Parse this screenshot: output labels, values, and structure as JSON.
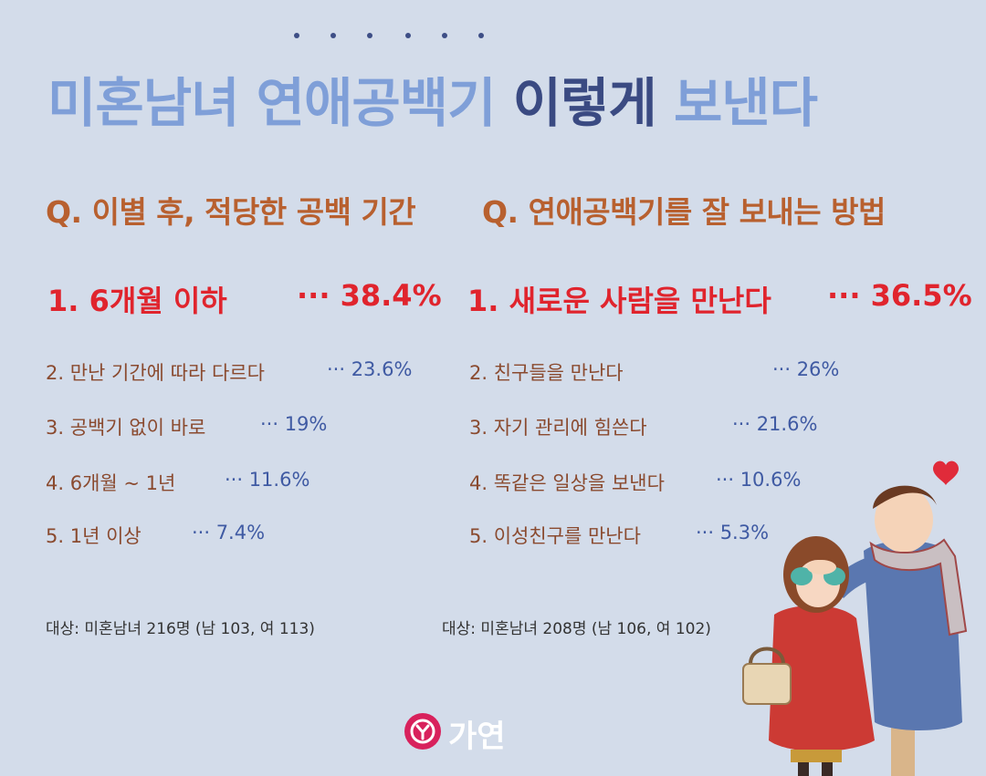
{
  "title": {
    "part1": "미혼남녀 연애공백기",
    "part2": "이렇게",
    "part3": "보낸다"
  },
  "left": {
    "question": "Q. 이별 후, 적당한 공백 기간",
    "top_label": "1. 6개월 이하",
    "top_pct": "··· 38.4%",
    "items": [
      {
        "label": "2. 만난 기간에 따라 다르다",
        "pct": "··· 23.6%"
      },
      {
        "label": "3. 공백기 없이 바로",
        "pct": "··· 19%"
      },
      {
        "label": "4. 6개월 ~ 1년",
        "pct": "··· 11.6%"
      },
      {
        "label": "5. 1년 이상",
        "pct": "··· 7.4%"
      }
    ],
    "note": "대상: 미혼남녀 216명 (남 103, 여 113)"
  },
  "right": {
    "question": "Q. 연애공백기를 잘 보내는 방법",
    "top_label": "1. 새로운 사람을 만난다",
    "top_pct": "··· 36.5%",
    "items": [
      {
        "label": "2. 친구들을 만난다",
        "pct": "··· 26%"
      },
      {
        "label": "3. 자기 관리에 힘쓴다",
        "pct": "··· 21.6%"
      },
      {
        "label": "4. 똑같은 일상을 보낸다",
        "pct": "··· 10.6%"
      },
      {
        "label": "5. 이성친구를 만난다",
        "pct": "··· 5.3%"
      }
    ],
    "note": "대상: 미혼남녀 208명 (남 106, 여 102)"
  },
  "logo": {
    "mark": "ⓖ",
    "text": "가연"
  },
  "colors": {
    "background": "#d3dcea",
    "title_light": "#7f9fd8",
    "title_dark": "#3a4a82",
    "question": "#b8602f",
    "top_answer": "#e0242d",
    "item_text": "#8a4a2f",
    "percent": "#3f5aa3",
    "logo": "#d8215c"
  },
  "icons": {
    "illustration": "couple-illustration",
    "heart": "heart-icon",
    "logo": "gayeon-logo-icon"
  }
}
